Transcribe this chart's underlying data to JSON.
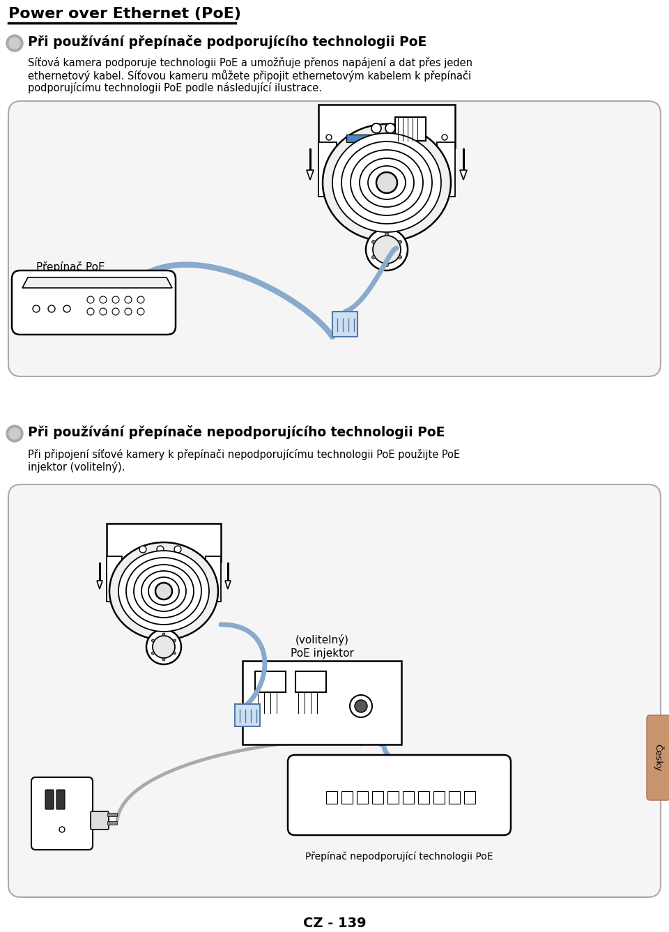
{
  "title": "Power over Ethernet (PoE)",
  "section1_heading": "Při používání přepínače podporujícího technologii PoE",
  "section1_text1": "Síťová kamera podporuje technologii PoE a umožňuje přenos napájení a dat přes jeden",
  "section1_text2": "ethernetový kabel. Síťovou kameru můžete připojit ethernetovým kabelem k přepínači",
  "section1_text3": "podporujícímu technologii PoE podle následující ilustrace.",
  "label1": "Přepínač PoE",
  "section2_heading": "Při používání přepínače nepodporujícího technologii PoE",
  "section2_text1": "Při připojení síťové kamery k přepínači nepodporujícímu technologii PoE použijte PoE",
  "section2_text2": "injektor (volitelný).",
  "label2_line1": "PoE injektor",
  "label2_line2": "(volitelný)",
  "label3": "Přepínač nepodporující technologii PoE",
  "footer": "CZ - 139",
  "tab_label": "Česky",
  "bg_color": "#ffffff",
  "box_facecolor": "#f5f5f5",
  "box_edgecolor": "#aaaaaa",
  "bullet_outer": "#aaaaaa",
  "bullet_inner": "#cccccc",
  "cable_color": "#88aacc",
  "power_cable_color": "#aaaaaa",
  "tab_color": "#c8956e",
  "tab_edge": "#b07050"
}
